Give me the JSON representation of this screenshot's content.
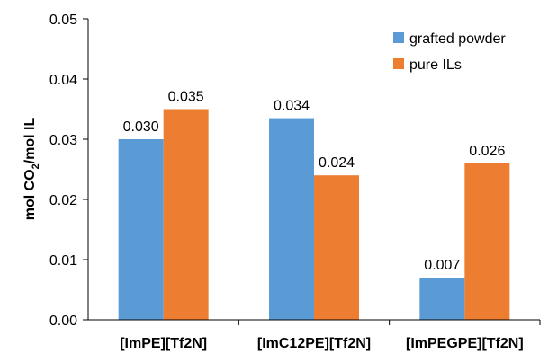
{
  "chart_data": {
    "type": "bar",
    "categories": [
      "[ImPE][Tf2N]",
      "[ImC12PE][Tf2N]",
      "[ImPEGPE][Tf2N]"
    ],
    "series": [
      {
        "name": "grafted powder",
        "color": "#5B9BD5",
        "values": [
          0.03,
          0.0335,
          0.007
        ],
        "labels": [
          "0.030",
          "0.034",
          "0.007"
        ]
      },
      {
        "name": "pure ILs",
        "color": "#ED7D31",
        "values": [
          0.035,
          0.024,
          0.026
        ],
        "labels": [
          "0.035",
          "0.024",
          "0.026"
        ]
      }
    ],
    "ylabel_main": "mol CO",
    "ylabel_sub": "2",
    "ylabel_tail": "/mol IL",
    "ylim": [
      0,
      0.05
    ],
    "yticks": [
      "0.00",
      "0.01",
      "0.02",
      "0.03",
      "0.04",
      "0.05"
    ],
    "ytick_values": [
      0,
      0.01,
      0.02,
      0.03,
      0.04,
      0.05
    ],
    "legend_position": "top-right",
    "grid": false
  }
}
